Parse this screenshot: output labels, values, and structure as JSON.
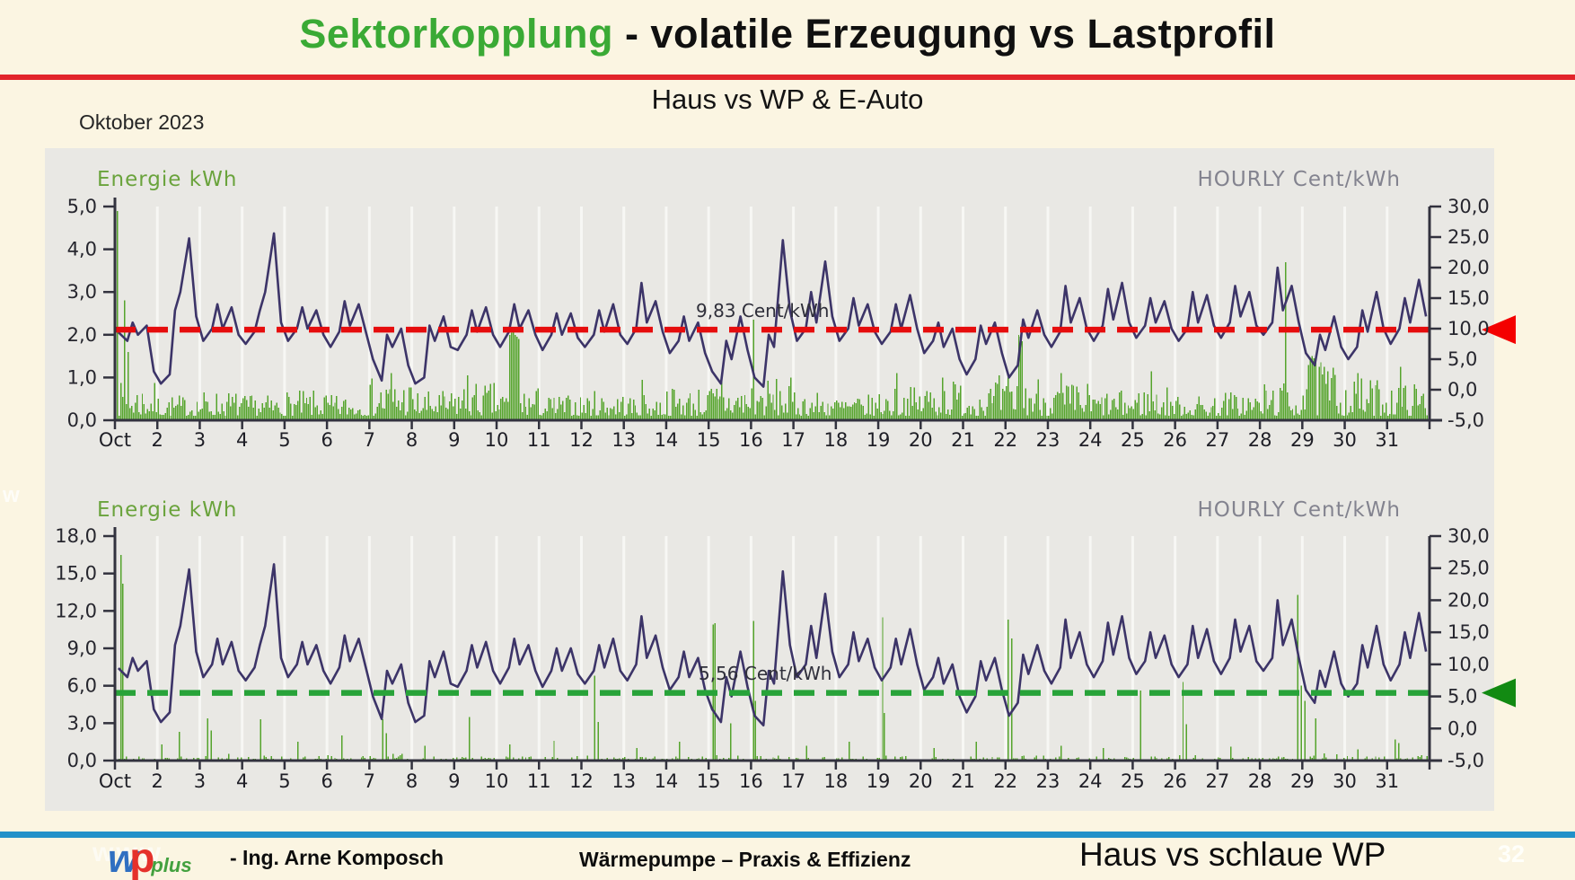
{
  "slide": {
    "title_highlight": "Sektorkopplung",
    "title_rest": " - volatile Erzeugung vs Lastprofil",
    "subtitle": "Haus vs WP & E-Auto",
    "period_label": "Oktober 2023",
    "bottom_right_label": "Haus vs schlaue WP",
    "page_number": "32",
    "edge_watermark": "w",
    "colors": {
      "background": "#fbf5e2",
      "title_green": "#3aaa35",
      "divider_red": "#e2242b",
      "divider_blue": "#2191c9",
      "panel_gray": "#e9e8e4"
    }
  },
  "footer": {
    "watermark": "www",
    "logo_w": "w",
    "logo_p": "p",
    "logo_plus": "plus",
    "author": "- Ing. Arne Komposch",
    "center_text": "Wärmepumpe – Praxis & Effizienz"
  },
  "chart_data": [
    {
      "id": "haus-vs-wp-eauto",
      "type": "bar",
      "subtype": "dual-axis bar+line, hourly values for October 2023",
      "title_left": "Energie kWh",
      "title_right": "HOURLY Cent/kWh",
      "x_tick_labels": [
        "Oct",
        "2",
        "3",
        "4",
        "5",
        "6",
        "7",
        "8",
        "9",
        "10",
        "11",
        "12",
        "13",
        "14",
        "15",
        "16",
        "17",
        "18",
        "19",
        "20",
        "21",
        "22",
        "23",
        "24",
        "25",
        "26",
        "27",
        "28",
        "29",
        "30",
        "31"
      ],
      "days": 31,
      "left_axis": {
        "label": "Energie kWh",
        "min": 0,
        "max": 5,
        "tick_step": 1,
        "tick_labels": [
          "0,0",
          "1,0",
          "2,0",
          "3,0",
          "4,0",
          "5,0"
        ]
      },
      "right_axis": {
        "label": "HOURLY Cent/kWh",
        "min": -5,
        "max": 30,
        "tick_step": 5,
        "tick_labels": [
          "-5,0",
          "0,0",
          "5,0",
          "10,0",
          "15,0",
          "20,0",
          "25,0",
          "30,0"
        ]
      },
      "grid": "vertical day lines",
      "threshold": {
        "value": 9.83,
        "label": "9,83 Cent/kWh",
        "color": "#e60d0d",
        "arrow_color": "#f40000",
        "axis": "right"
      },
      "line_series": {
        "name": "HOURLY Cent/kWh",
        "axis": "right",
        "color": "#3c3468",
        "samples_per_day": 6,
        "sample_hours": [
          2,
          7,
          10,
          13,
          18,
          22
        ],
        "values": [
          9.4,
          8,
          11,
          9,
          10.5,
          3,
          1,
          2.5,
          13,
          16,
          24.8,
          12,
          8,
          10,
          14,
          10,
          13.5,
          9,
          7.5,
          9.5,
          13,
          16,
          25.6,
          11,
          8,
          10,
          13.5,
          10,
          13,
          9,
          7,
          9.5,
          14.5,
          10.5,
          14,
          9.5,
          5,
          1.5,
          9,
          7,
          10,
          4,
          1,
          2,
          10.5,
          8,
          12,
          7,
          6.5,
          9,
          13,
          9.5,
          13.5,
          9,
          7,
          9.5,
          14,
          10,
          13,
          9,
          6.5,
          9,
          12.5,
          9,
          12.5,
          8.5,
          7,
          9,
          13,
          9.5,
          14,
          9,
          7.5,
          10,
          17.5,
          11,
          14.5,
          9.5,
          6,
          8,
          12,
          8,
          11,
          6,
          3,
          1,
          8,
          5,
          12,
          6.5,
          2,
          0.5,
          9,
          7,
          24.5,
          13,
          8,
          10,
          16,
          11,
          21,
          12,
          8,
          10,
          15,
          10.5,
          14,
          9.5,
          7.5,
          9.5,
          14,
          10,
          15.5,
          10,
          6,
          8,
          11,
          7,
          10,
          5,
          2.5,
          5,
          10.5,
          7.5,
          11,
          6,
          2,
          4,
          11.5,
          8.5,
          13,
          9,
          7,
          9.5,
          17,
          11,
          15,
          10,
          8,
          10.5,
          16.5,
          11.5,
          17.5,
          11,
          8.5,
          10.5,
          15,
          11,
          14.5,
          10,
          8,
          10,
          16,
          11,
          15.5,
          10.5,
          8.5,
          11,
          17,
          12,
          16,
          10.5,
          9,
          11,
          20,
          13,
          17,
          11,
          6,
          4,
          9,
          6.5,
          12,
          7,
          5,
          7,
          13,
          9.5,
          16,
          10,
          7.5,
          10,
          15,
          11,
          18,
          12
        ]
      },
      "bar_series": {
        "name": "Energie kWh",
        "axis": "left",
        "color": "#55a42c",
        "approximation": "hourly bars approximated by per-day typical envelope plus listed spikes [day.fraction, kWh]",
        "base": 0.1,
        "expo": 1.6,
        "texture_seed": 7,
        "day_envelope": [
          0.8,
          0.5,
          0.6,
          0.5,
          0.6,
          0.5,
          0.9,
          0.6,
          0.8,
          0.7,
          0.5,
          0.6,
          0.5,
          0.7,
          0.8,
          0.9,
          0.6,
          0.5,
          0.7,
          0.9,
          0.8,
          1.0,
          0.8,
          0.6,
          0.7,
          0.5,
          0.6,
          0.8,
          1.3,
          0.9,
          0.8
        ],
        "spikes": [
          [
            1.05,
            4.9
          ],
          [
            1.22,
            2.8
          ],
          [
            1.3,
            1.6
          ],
          [
            7.5,
            1.1
          ],
          [
            9.3,
            1.05
          ],
          [
            10.3,
            2.0
          ],
          [
            10.34,
            2.05
          ],
          [
            10.38,
            2.1
          ],
          [
            10.42,
            2.0
          ],
          [
            10.46,
            1.95
          ],
          [
            10.5,
            1.9
          ],
          [
            13.4,
            0.95
          ],
          [
            15.3,
            1.0
          ],
          [
            16.04,
            2.35
          ],
          [
            19.4,
            1.1
          ],
          [
            20.5,
            1.0
          ],
          [
            21.85,
            1.05
          ],
          [
            22.28,
            2.0
          ],
          [
            22.32,
            1.95
          ],
          [
            22.36,
            1.85
          ],
          [
            23.3,
            1.1
          ],
          [
            25.4,
            1.15
          ],
          [
            28.6,
            3.7
          ],
          [
            29.2,
            1.5
          ],
          [
            29.25,
            1.45
          ],
          [
            29.3,
            1.4
          ],
          [
            29.4,
            1.35
          ],
          [
            29.5,
            1.25
          ],
          [
            30.3,
            1.1
          ],
          [
            31.28,
            1.25
          ]
        ]
      }
    },
    {
      "id": "haus-vs-schlaue-wp",
      "type": "bar",
      "subtype": "dual-axis bar+line, hourly values for October 2023",
      "title_left": "Energie kWh",
      "title_right": "HOURLY Cent/kWh",
      "x_tick_labels": [
        "Oct",
        "2",
        "3",
        "4",
        "5",
        "6",
        "7",
        "8",
        "9",
        "10",
        "11",
        "12",
        "13",
        "14",
        "15",
        "16",
        "17",
        "18",
        "19",
        "20",
        "21",
        "22",
        "23",
        "24",
        "25",
        "26",
        "27",
        "28",
        "29",
        "30",
        "31"
      ],
      "days": 31,
      "left_axis": {
        "label": "Energie kWh",
        "min": 0,
        "max": 18,
        "tick_step": 3,
        "tick_labels": [
          "0,0",
          "3,0",
          "6,0",
          "9,0",
          "12,0",
          "15,0",
          "18,0"
        ]
      },
      "right_axis": {
        "label": "HOURLY Cent/kWh",
        "min": -5,
        "max": 30,
        "tick_step": 5,
        "tick_labels": [
          "-5,0",
          "0,0",
          "5,0",
          "10,0",
          "15,0",
          "20,0",
          "25,0",
          "30,0"
        ]
      },
      "grid": "vertical day lines",
      "threshold": {
        "value": 5.56,
        "label": "5,56 Cent/kWh",
        "color": "#28a339",
        "arrow_color": "#128a12",
        "axis": "right"
      },
      "line_series": {
        "name": "HOURLY Cent/kWh",
        "axis": "right",
        "color": "#3c3468",
        "samples_per_day": 6,
        "sample_hours": [
          2,
          7,
          10,
          13,
          18,
          22
        ],
        "values": [
          9.4,
          8,
          11,
          9,
          10.5,
          3,
          1,
          2.5,
          13,
          16,
          24.8,
          12,
          8,
          10,
          14,
          10,
          13.5,
          9,
          7.5,
          9.5,
          13,
          16,
          25.6,
          11,
          8,
          10,
          13.5,
          10,
          13,
          9,
          7,
          9.5,
          14.5,
          10.5,
          14,
          9.5,
          5,
          1.5,
          9,
          7,
          10,
          4,
          1,
          2,
          10.5,
          8,
          12,
          7,
          6.5,
          9,
          13,
          9.5,
          13.5,
          9,
          7,
          9.5,
          14,
          10,
          13,
          9,
          6.5,
          9,
          12.5,
          9,
          12.5,
          8.5,
          7,
          9,
          13,
          9.5,
          14,
          9,
          7.5,
          10,
          17.5,
          11,
          14.5,
          9.5,
          6,
          8,
          12,
          8,
          11,
          6,
          3,
          1,
          8,
          5,
          12,
          6.5,
          2,
          0.5,
          9,
          7,
          24.5,
          13,
          8,
          10,
          16,
          11,
          21,
          12,
          8,
          10,
          15,
          10.5,
          14,
          9.5,
          7.5,
          9.5,
          14,
          10,
          15.5,
          10,
          6,
          8,
          11,
          7,
          10,
          5,
          2.5,
          5,
          10.5,
          7.5,
          11,
          6,
          2,
          4,
          11.5,
          8.5,
          13,
          9,
          7,
          9.5,
          17,
          11,
          15,
          10,
          8,
          10.5,
          16.5,
          11.5,
          17.5,
          11,
          8.5,
          10.5,
          15,
          11,
          14.5,
          10,
          8,
          10,
          16,
          11,
          15.5,
          10.5,
          8.5,
          11,
          17,
          12,
          16,
          10.5,
          9,
          11,
          20,
          13,
          17,
          11,
          6,
          4,
          9,
          6.5,
          12,
          7,
          5,
          7,
          13,
          9.5,
          16,
          10,
          7.5,
          10,
          15,
          11,
          18,
          12
        ]
      },
      "bar_series": {
        "name": "Energie kWh",
        "axis": "left",
        "color": "#55a42c",
        "approximation": "hourly bars approximated by per-day typical envelope plus listed spikes [day.fraction, kWh]",
        "base": 0.05,
        "expo": 3.0,
        "texture_seed": 11,
        "day_envelope": [
          0.45,
          0.3,
          0.5,
          0.4,
          0.3,
          0.4,
          0.5,
          0.3,
          0.4,
          0.3,
          0.3,
          0.4,
          0.3,
          0.3,
          0.5,
          0.4,
          0.3,
          0.3,
          0.4,
          0.3,
          0.3,
          0.4,
          0.3,
          0.3,
          0.4,
          0.4,
          0.3,
          0.5,
          0.6,
          0.3,
          0.4
        ],
        "spikes": [
          [
            1.12,
            16.5
          ],
          [
            1.18,
            14.2
          ],
          [
            2.08,
            1.3
          ],
          [
            2.5,
            2.3
          ],
          [
            3.17,
            3.4
          ],
          [
            3.25,
            2.4
          ],
          [
            4.4,
            3.3
          ],
          [
            5.3,
            1.5
          ],
          [
            6.33,
            2.0
          ],
          [
            7.3,
            3.3
          ],
          [
            7.38,
            2.2
          ],
          [
            8.3,
            1.2
          ],
          [
            9.33,
            3.5
          ],
          [
            10.3,
            1.3
          ],
          [
            11.33,
            1.6
          ],
          [
            12.3,
            6.8
          ],
          [
            12.36,
            3.1
          ],
          [
            13.3,
            1.0
          ],
          [
            14.3,
            1.5
          ],
          [
            15.08,
            10.9
          ],
          [
            15.14,
            11.0
          ],
          [
            15.5,
            3.0
          ],
          [
            16.03,
            11.2
          ],
          [
            16.09,
            4.8
          ],
          [
            17.3,
            1.2
          ],
          [
            18.3,
            1.5
          ],
          [
            19.08,
            11.5
          ],
          [
            19.14,
            3.8
          ],
          [
            20.3,
            1.0
          ],
          [
            21.3,
            1.5
          ],
          [
            22.06,
            11.3
          ],
          [
            22.12,
            9.8
          ],
          [
            23.3,
            1.2
          ],
          [
            24.3,
            1.0
          ],
          [
            25.17,
            5.6
          ],
          [
            26.17,
            6.3
          ],
          [
            26.23,
            2.9
          ],
          [
            27.3,
            1.1
          ],
          [
            28.88,
            13.3
          ],
          [
            28.96,
            6.0
          ],
          [
            29.04,
            4.8
          ],
          [
            29.3,
            3.4
          ],
          [
            30.3,
            0.9
          ],
          [
            31.17,
            1.7
          ],
          [
            31.23,
            1.4
          ]
        ]
      }
    }
  ]
}
